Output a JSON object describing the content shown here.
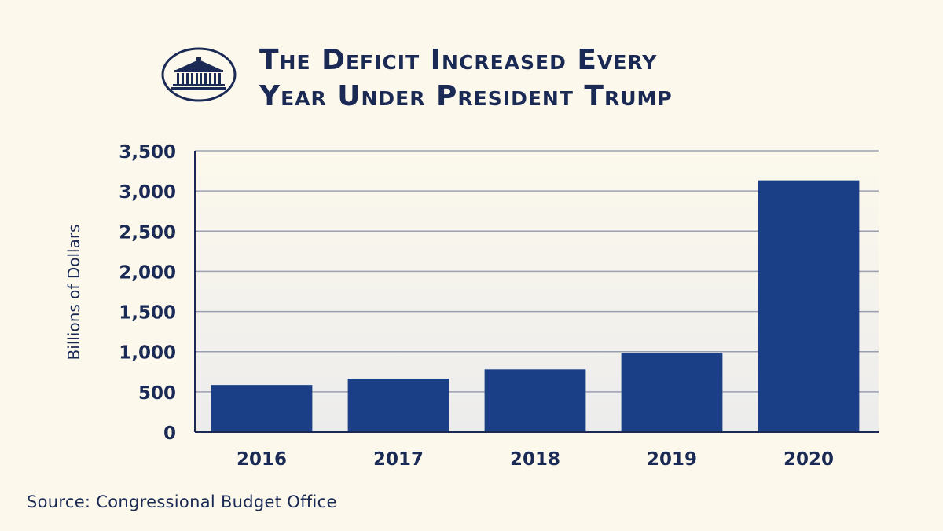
{
  "title_line1": "The Deficit Increased Every",
  "title_line2": "Year Under President Trump",
  "source": "Source: Congressional Budget Office",
  "colors": {
    "background": "#fcf9ec",
    "bar": "#1b3f87",
    "text": "#1b2a55",
    "grid": "#9aa0b1"
  },
  "chart_data": {
    "type": "bar",
    "categories": [
      "2016",
      "2017",
      "2018",
      "2019",
      "2020"
    ],
    "values": [
      585,
      665,
      779,
      984,
      3132
    ],
    "xlabel": "",
    "ylabel": "Billions of Dollars",
    "ylim": [
      0,
      3500
    ],
    "yticks": [
      0,
      500,
      1000,
      1500,
      2000,
      2500,
      3000,
      3500
    ],
    "ytick_labels": [
      "0",
      "500",
      "1,000",
      "1,500",
      "2,000",
      "2,500",
      "3,000",
      "3,500"
    ],
    "grid": true
  }
}
